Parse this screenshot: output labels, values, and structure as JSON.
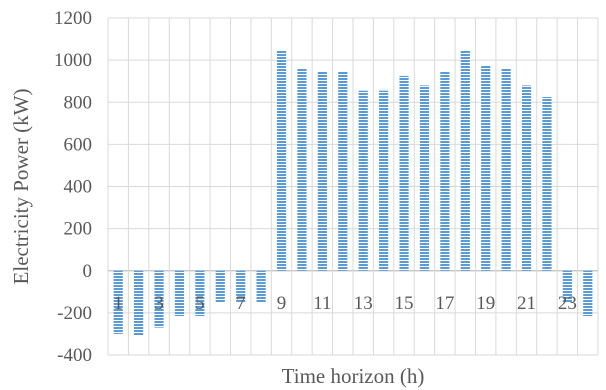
{
  "chart_data": {
    "type": "bar",
    "title": "",
    "xlabel": "Time horizon (h)",
    "ylabel": "Electricity  Power (kW)",
    "ylim": [
      -400,
      1200
    ],
    "yticks": [
      -400,
      -200,
      0,
      200,
      400,
      600,
      800,
      1000,
      1200
    ],
    "categories": [
      "1",
      "2",
      "3",
      "4",
      "5",
      "6",
      "7",
      "8",
      "9",
      "10",
      "11",
      "12",
      "13",
      "14",
      "15",
      "16",
      "17",
      "18",
      "19",
      "20",
      "21",
      "22",
      "23",
      "24"
    ],
    "category_tick_labels": [
      "1",
      "",
      "3",
      "",
      "5",
      "",
      "7",
      "",
      "9",
      "",
      "11",
      "",
      "13",
      "",
      "15",
      "",
      "17",
      "",
      "19",
      "",
      "21",
      "",
      "23",
      ""
    ],
    "values": [
      -300,
      -305,
      -270,
      -215,
      -215,
      -150,
      -150,
      -150,
      1045,
      960,
      945,
      945,
      855,
      855,
      925,
      880,
      945,
      1045,
      975,
      960,
      880,
      825,
      -150,
      -215
    ],
    "grid": true,
    "bar_color": "#5b9bd5",
    "bar_pattern": "horizontal-stripes"
  }
}
